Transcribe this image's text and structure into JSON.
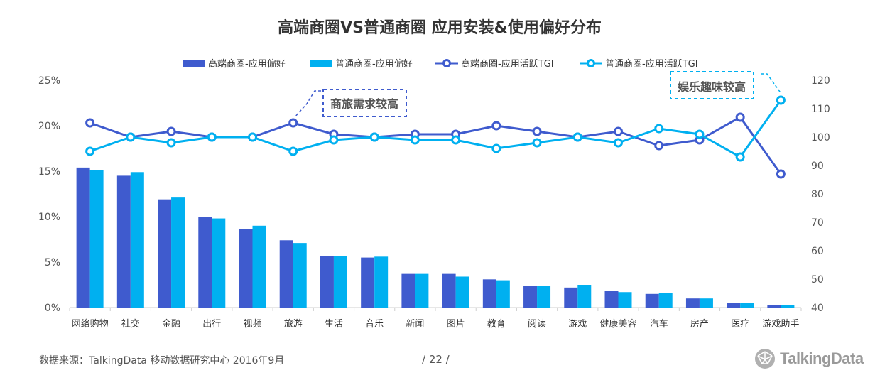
{
  "title": "高端商圈VS普通商圈  应用安装&使用偏好分布",
  "footer": {
    "source": "数据来源：TalkingData 移动数据研究中心  2016年9月",
    "page": "/  22  /",
    "logo": "TalkingData"
  },
  "colors": {
    "high": "#3f5bce",
    "normal": "#00b0f0"
  },
  "chart_data": {
    "type": "bar",
    "categories": [
      "网络购物",
      "社交",
      "金融",
      "出行",
      "视频",
      "旅游",
      "生活",
      "音乐",
      "新闻",
      "图片",
      "教育",
      "阅读",
      "游戏",
      "健康美容",
      "汽车",
      "房产",
      "医疗",
      "游戏助手"
    ],
    "series": [
      {
        "name": "高端商圈-应用偏好",
        "type": "bar",
        "axis": "left",
        "values": [
          15.4,
          14.5,
          11.9,
          10.0,
          8.6,
          7.4,
          5.7,
          5.5,
          3.7,
          3.7,
          3.1,
          2.4,
          2.2,
          1.8,
          1.5,
          1.0,
          0.5,
          0.3
        ]
      },
      {
        "name": "普通商圈-应用偏好",
        "type": "bar",
        "axis": "left",
        "values": [
          15.1,
          14.9,
          12.1,
          9.8,
          9.0,
          7.1,
          5.7,
          5.6,
          3.7,
          3.4,
          3.0,
          2.4,
          2.5,
          1.7,
          1.6,
          1.0,
          0.5,
          0.3
        ]
      },
      {
        "name": "高端商圈-应用活跃TGI",
        "type": "line",
        "axis": "right",
        "values": [
          105,
          100,
          102,
          100,
          100,
          105,
          101,
          100,
          101,
          101,
          104,
          102,
          100,
          102,
          97,
          99,
          107,
          87
        ]
      },
      {
        "name": "普通商圈-应用活跃TGI",
        "type": "line",
        "axis": "right",
        "values": [
          95,
          100,
          98,
          100,
          100,
          95,
          99,
          100,
          99,
          99,
          96,
          98,
          100,
          98,
          103,
          101,
          93,
          113
        ]
      }
    ],
    "y_left": {
      "ylim": [
        0,
        25
      ],
      "ticks": [
        "0%",
        "5%",
        "10%",
        "15%",
        "20%",
        "25%"
      ]
    },
    "y_right": {
      "ylim": [
        40,
        120
      ],
      "ticks": [
        "40",
        "50",
        "60",
        "70",
        "80",
        "90",
        "100",
        "110",
        "120"
      ]
    },
    "legend_position": "top",
    "annotations": [
      {
        "text": "商旅需求较高",
        "category": "旅游"
      },
      {
        "text": "娱乐趣味较高",
        "category": "游戏助手"
      }
    ]
  }
}
